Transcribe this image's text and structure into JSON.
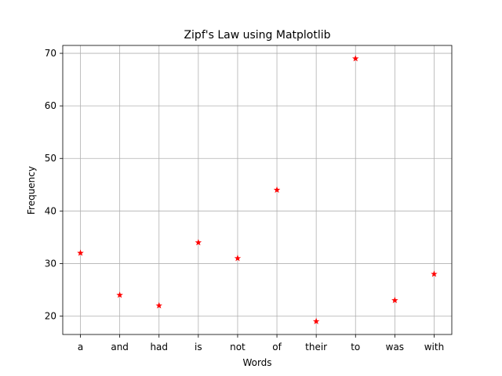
{
  "chart_data": {
    "type": "scatter",
    "title": "Zipf's Law using Matplotlib",
    "xlabel": "Words",
    "ylabel": "Frequency",
    "categories": [
      "a",
      "and",
      "had",
      "is",
      "not",
      "of",
      "their",
      "to",
      "was",
      "with"
    ],
    "values": [
      32,
      24,
      22,
      34,
      31,
      44,
      19,
      69,
      23,
      28
    ],
    "yticks": [
      20,
      30,
      40,
      50,
      60,
      70
    ],
    "ylim": [
      16.5,
      71.5
    ],
    "grid": true,
    "marker": "star",
    "marker_color": "#ff0000"
  }
}
